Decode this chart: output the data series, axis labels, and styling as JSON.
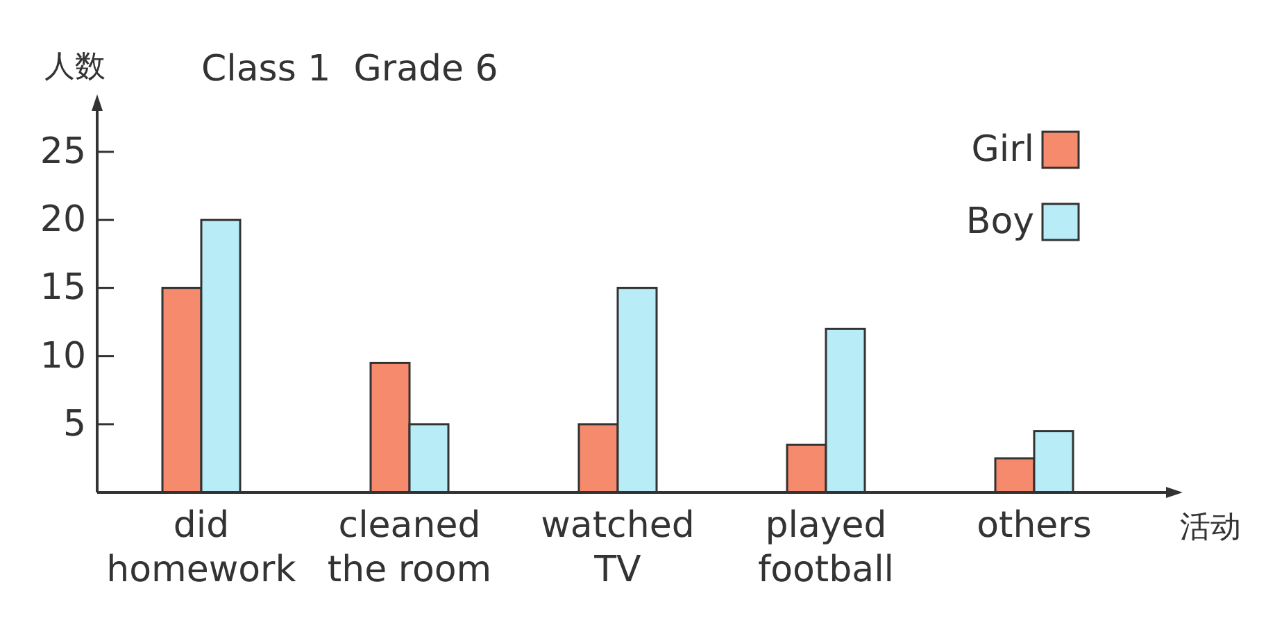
{
  "chart_data": {
    "type": "bar",
    "title": "Class 1  Grade 6",
    "xlabel": "活动",
    "ylabel": "人数",
    "categories": [
      "did\nhomework",
      "cleaned\nthe room",
      "watched\nTV",
      "played\nfootball",
      "others"
    ],
    "series": [
      {
        "name": "Girl",
        "color": "#f58a6c",
        "values": [
          15,
          9.5,
          5,
          3.5,
          2.5
        ]
      },
      {
        "name": "Boy",
        "color": "#b8ecf6",
        "values": [
          20,
          5,
          15,
          12,
          4.5
        ]
      }
    ],
    "ylim": [
      0,
      28
    ],
    "yticks": [
      5,
      10,
      15,
      20,
      25
    ],
    "legend": "top right"
  }
}
